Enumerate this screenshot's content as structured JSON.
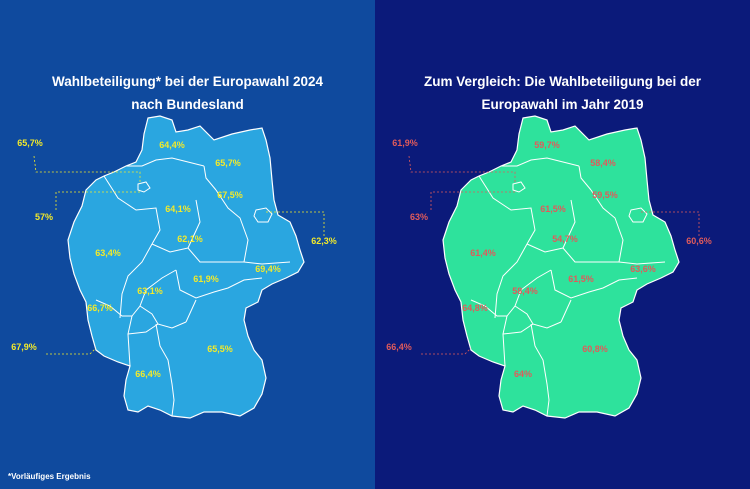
{
  "colors": {
    "left_bg": "#0f4a9e",
    "right_bg": "#0b1a7a",
    "left_map": "#2aa6e0",
    "right_map": "#2ee29c",
    "left_label": "#f3ea2a",
    "right_label": "#e05b5b",
    "border": "#ffffff"
  },
  "left_panel": {
    "title_line1": "Wahlbeteiligung* bei der Europawahl 2024",
    "title_line2": "nach Bundesland",
    "values": {
      "sh": "64,4%",
      "mv": "65,7%",
      "hh": "65,7%",
      "hb": "57%",
      "ni": "64,1%",
      "be": "67,5%",
      "bb": "62,3%",
      "st": "62,1%",
      "nw": "63,4%",
      "sn": "69,4%",
      "th": "61,9%",
      "he": "63,1%",
      "rp": "66,7%",
      "sl": "67,9%",
      "bw": "66,4%",
      "by": "65,5%"
    }
  },
  "right_panel": {
    "title_line1": "Zum Vergleich: Die Wahlbeteiligung bei der",
    "title_line2": "Europawahl im Jahr 2019",
    "values": {
      "sh": "59,7%",
      "mv": "58,4%",
      "hh": "61,9%",
      "hb": "63%",
      "ni": "61,5%",
      "be": "59,5%",
      "bb": "60,6%",
      "st": "54,7%",
      "nw": "61,4%",
      "sn": "63,6%",
      "th": "61,5%",
      "he": "58,4%",
      "rp": "64,8%",
      "sl": "66,4%",
      "bw": "64%",
      "by": "60,8%"
    }
  },
  "footnote": "*Vorläufiges Ergebnis"
}
